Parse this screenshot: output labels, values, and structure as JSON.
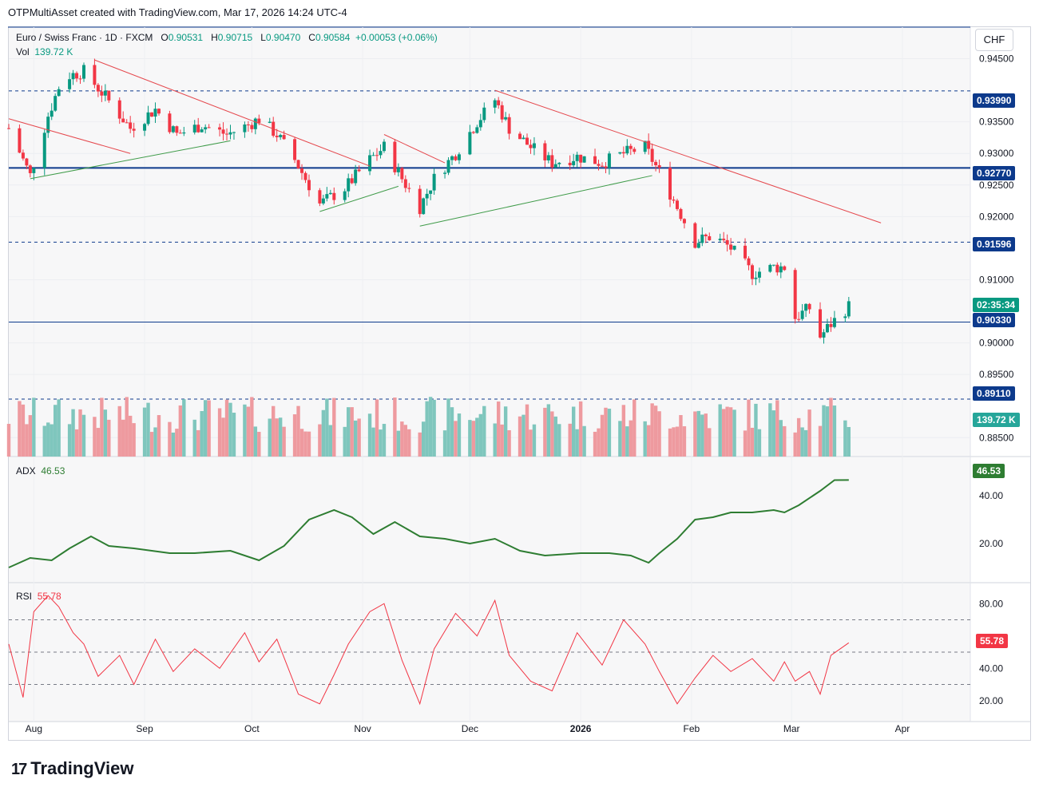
{
  "header": {
    "credit": "OTPMultiAsset created with TradingView.com, Mar 17, 2026 14:24 UTC-4"
  },
  "legend": {
    "symbol": "Euro / Swiss Franc · 1D · FXCM",
    "o_label": "O",
    "o_value": "0.90531",
    "h_label": "H",
    "h_value": "0.90715",
    "l_label": "L",
    "l_value": "0.90470",
    "c_label": "C",
    "c_value": "0.90584",
    "change": "+0.00053 (+0.06%)",
    "vol_label": "Vol",
    "vol_value": "139.72 K"
  },
  "currency": "CHF",
  "price_axis": {
    "ticks": [
      "0.94500",
      "0.93500",
      "0.93000",
      "0.92500",
      "0.92000",
      "0.91000",
      "0.90000",
      "0.89500",
      "0.88500"
    ]
  },
  "price_tags": [
    {
      "value": "0.93990",
      "color": "#0d3a8c"
    },
    {
      "value": "0.92770",
      "color": "#0d3a8c"
    },
    {
      "value": "0.91596",
      "color": "#0d3a8c"
    },
    {
      "value": "02:35:34",
      "color": "#089981"
    },
    {
      "value": "0.90330",
      "color": "#0d3a8c"
    },
    {
      "value": "0.89110",
      "color": "#0d3a8c"
    },
    {
      "value": "139.72 K",
      "color": "#26a69a"
    }
  ],
  "adx": {
    "label": "ADX",
    "value": "46.53",
    "tag": "46.53",
    "ticks": [
      "40.00",
      "20.00"
    ],
    "color": "#2e7d32"
  },
  "rsi": {
    "label": "RSI",
    "value": "55.78",
    "tag": "55.78",
    "ticks": [
      "80.00",
      "40.00",
      "20.00"
    ],
    "color": "#f23645"
  },
  "time_axis": [
    "Aug",
    "Sep",
    "Oct",
    "Nov",
    "Dec",
    "2026",
    "Feb",
    "Mar",
    "Apr"
  ],
  "footer": {
    "brand": "TradingView",
    "logo_mark": "17"
  },
  "colors": {
    "up": "#089981",
    "down": "#f23645",
    "level": "#0d3a8c",
    "volume_up": "#7fc6bd",
    "volume_down": "#ee9a9f"
  },
  "chart_data": [
    {
      "type": "candlestick",
      "title": "Euro / Swiss Franc · 1D · FXCM",
      "ylim": [
        0.882,
        0.95
      ],
      "x_range": [
        "Jul 25, 2025",
        "Apr 20, 2026"
      ],
      "horizontal_levels": [
        0.9399,
        0.9277,
        0.91596,
        0.9033,
        0.8911
      ],
      "trendlines_down": [
        {
          "from": [
            "Jul 25",
            0.9355
          ],
          "to": [
            "Aug 28",
            0.93
          ]
        },
        {
          "from": [
            "Aug 18",
            0.9448
          ],
          "to": [
            "Nov 3",
            0.928
          ]
        },
        {
          "from": [
            "Nov 7",
            0.933
          ],
          "to": [
            "Nov 24",
            0.9285
          ]
        },
        {
          "from": [
            "Dec 8",
            0.94
          ],
          "to": [
            "Mar 26",
            0.919
          ]
        }
      ],
      "trendlines_up": [
        {
          "from": [
            "Jul 31",
            0.926
          ],
          "to": [
            "Sep 25",
            0.932
          ]
        },
        {
          "from": [
            "Oct 20",
            0.9208
          ],
          "to": [
            "Nov 11",
            0.9248
          ]
        },
        {
          "from": [
            "Nov 17",
            0.9185
          ],
          "to": [
            "Jan 21",
            0.9265
          ]
        }
      ],
      "close_path": [
        {
          "x": "Jul 25",
          "y": 0.934
        },
        {
          "x": "Jul 31",
          "y": 0.9265
        },
        {
          "x": "Aug 5",
          "y": 0.936
        },
        {
          "x": "Aug 9",
          "y": 0.942
        },
        {
          "x": "Aug 15",
          "y": 0.943
        },
        {
          "x": "Aug 21",
          "y": 0.939
        },
        {
          "x": "Aug 28",
          "y": 0.934
        },
        {
          "x": "Sep 4",
          "y": 0.937
        },
        {
          "x": "Sep 10",
          "y": 0.933
        },
        {
          "x": "Sep 17",
          "y": 0.9345
        },
        {
          "x": "Sep 24",
          "y": 0.933
        },
        {
          "x": "Sep 30",
          "y": 0.9345
        },
        {
          "x": "Oct 3",
          "y": 0.9355
        },
        {
          "x": "Oct 8",
          "y": 0.933
        },
        {
          "x": "Oct 13",
          "y": 0.929
        },
        {
          "x": "Oct 20",
          "y": 0.922
        },
        {
          "x": "Oct 27",
          "y": 0.9245
        },
        {
          "x": "Nov 3",
          "y": 0.929
        },
        {
          "x": "Nov 7",
          "y": 0.931
        },
        {
          "x": "Nov 12",
          "y": 0.926
        },
        {
          "x": "Nov 17",
          "y": 0.9215
        },
        {
          "x": "Nov 21",
          "y": 0.926
        },
        {
          "x": "Nov 27",
          "y": 0.93
        },
        {
          "x": "Dec 3",
          "y": 0.935
        },
        {
          "x": "Dec 8",
          "y": 0.9385
        },
        {
          "x": "Dec 12",
          "y": 0.934
        },
        {
          "x": "Dec 18",
          "y": 0.931
        },
        {
          "x": "Dec 24",
          "y": 0.9285
        },
        {
          "x": "Dec 31",
          "y": 0.9295
        },
        {
          "x": "Jan 7",
          "y": 0.9285
        },
        {
          "x": "Jan 13",
          "y": 0.93
        },
        {
          "x": "Jan 19",
          "y": 0.931
        },
        {
          "x": "Jan 23",
          "y": 0.927
        },
        {
          "x": "Jan 28",
          "y": 0.9215
        },
        {
          "x": "Feb 2",
          "y": 0.916
        },
        {
          "x": "Feb 7",
          "y": 0.917
        },
        {
          "x": "Feb 12",
          "y": 0.915
        },
        {
          "x": "Feb 18",
          "y": 0.911
        },
        {
          "x": "Feb 24",
          "y": 0.912
        },
        {
          "x": "Feb 27",
          "y": 0.912
        },
        {
          "x": "Mar 2",
          "y": 0.904
        },
        {
          "x": "Mar 6",
          "y": 0.9055
        },
        {
          "x": "Mar 9",
          "y": 0.901
        },
        {
          "x": "Mar 12",
          "y": 0.903
        },
        {
          "x": "Mar 17",
          "y": 0.9058
        }
      ],
      "last": {
        "open": 0.90531,
        "high": 0.90715,
        "low": 0.9047,
        "close": 0.90584,
        "volume": "139.72 K"
      }
    },
    {
      "type": "line",
      "name": "ADX",
      "ylim": [
        5,
        55
      ],
      "x": [
        "Jul 25",
        "Jul 31",
        "Aug 6",
        "Aug 11",
        "Aug 17",
        "Aug 22",
        "Aug 29",
        "Sep 8",
        "Sep 15",
        "Sep 25",
        "Oct 3",
        "Oct 10",
        "Oct 17",
        "Oct 24",
        "Oct 29",
        "Nov 4",
        "Nov 10",
        "Nov 17",
        "Nov 24",
        "Dec 1",
        "Dec 8",
        "Dec 15",
        "Dec 22",
        "Jan 1",
        "Jan 9",
        "Jan 15",
        "Jan 20",
        "Jan 23",
        "Jan 28",
        "Feb 2",
        "Feb 7",
        "Feb 12",
        "Feb 18",
        "Feb 24",
        "Feb 27",
        "Mar 3",
        "Mar 9",
        "Mar 13",
        "Mar 17"
      ],
      "y": [
        10,
        14,
        13,
        18,
        23,
        19,
        18,
        16,
        16,
        17,
        13,
        19,
        30,
        34,
        31,
        24,
        29,
        23,
        22,
        20,
        22,
        17,
        15,
        16,
        16,
        15,
        12,
        16,
        22,
        30,
        31,
        33,
        33,
        34,
        33,
        36,
        42,
        46.5,
        46.53
      ]
    },
    {
      "type": "line",
      "name": "RSI",
      "ylim": [
        10,
        90
      ],
      "levels": [
        70,
        50,
        30
      ],
      "x": [
        "Jul 25",
        "Jul 29",
        "Aug 1",
        "Aug 5",
        "Aug 8",
        "Aug 12",
        "Aug 15",
        "Aug 19",
        "Aug 25",
        "Aug 29",
        "Sep 4",
        "Sep 9",
        "Sep 15",
        "Sep 22",
        "Sep 29",
        "Oct 3",
        "Oct 8",
        "Oct 14",
        "Oct 20",
        "Oct 24",
        "Oct 28",
        "Nov 3",
        "Nov 7",
        "Nov 12",
        "Nov 17",
        "Nov 21",
        "Nov 27",
        "Dec 3",
        "Dec 8",
        "Dec 12",
        "Dec 18",
        "Dec 24",
        "Dec 31",
        "Jan 7",
        "Jan 13",
        "Jan 19",
        "Jan 23",
        "Jan 28",
        "Feb 2",
        "Feb 7",
        "Feb 12",
        "Feb 18",
        "Feb 24",
        "Feb 27",
        "Mar 2",
        "Mar 6",
        "Mar 9",
        "Mar 12",
        "Mar 17"
      ],
      "y": [
        55,
        22,
        75,
        85,
        78,
        62,
        55,
        35,
        48,
        30,
        58,
        38,
        52,
        40,
        62,
        44,
        58,
        24,
        18,
        36,
        55,
        75,
        80,
        45,
        18,
        52,
        74,
        60,
        82,
        48,
        32,
        26,
        62,
        42,
        70,
        55,
        38,
        18,
        34,
        48,
        38,
        46,
        32,
        44,
        32,
        38,
        24,
        48,
        55.78
      ]
    }
  ]
}
